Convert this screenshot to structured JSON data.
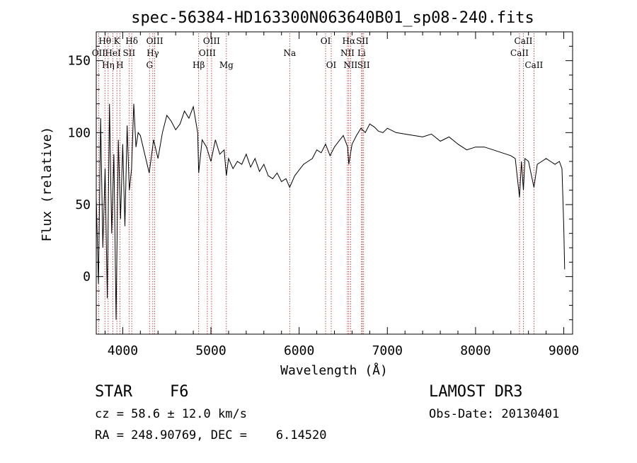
{
  "chart_data": {
    "type": "line",
    "title": "spec-56384-HD163300N063640B01_sp08-240.fits",
    "xlabel": "Wavelength (Å)",
    "ylabel": "Flux (relative)",
    "xlim": [
      3700,
      9100
    ],
    "ylim": [
      -40,
      170
    ],
    "xticks": [
      {
        "value": 4000,
        "label": "4000"
      },
      {
        "value": 5000,
        "label": "5000"
      },
      {
        "value": 6000,
        "label": "6000"
      },
      {
        "value": 7000,
        "label": "7000"
      },
      {
        "value": 8000,
        "label": "8000"
      },
      {
        "value": 9000,
        "label": "9000"
      }
    ],
    "yticks": [
      {
        "value": 0,
        "label": "0"
      },
      {
        "value": 50,
        "label": "50"
      },
      {
        "value": 100,
        "label": "100"
      },
      {
        "value": 150,
        "label": "150"
      }
    ],
    "grid": false,
    "series": [
      {
        "name": "flux",
        "color": "#000000",
        "x": [
          3700,
          3725,
          3750,
          3775,
          3800,
          3825,
          3850,
          3875,
          3900,
          3925,
          3950,
          3975,
          4000,
          4025,
          4050,
          4075,
          4100,
          4125,
          4150,
          4175,
          4200,
          4250,
          4300,
          4350,
          4400,
          4450,
          4500,
          4550,
          4600,
          4650,
          4700,
          4750,
          4800,
          4850,
          4861,
          4900,
          4950,
          5000,
          5050,
          5100,
          5150,
          5175,
          5200,
          5250,
          5300,
          5350,
          5400,
          5450,
          5500,
          5550,
          5600,
          5650,
          5700,
          5750,
          5800,
          5850,
          5893,
          5950,
          6000,
          6050,
          6100,
          6150,
          6200,
          6250,
          6300,
          6350,
          6400,
          6450,
          6500,
          6550,
          6563,
          6600,
          6650,
          6700,
          6750,
          6800,
          6850,
          6900,
          6950,
          7000,
          7100,
          7200,
          7300,
          7400,
          7500,
          7600,
          7700,
          7800,
          7900,
          8000,
          8100,
          8200,
          8300,
          8400,
          8450,
          8498,
          8520,
          8542,
          8560,
          8600,
          8662,
          8700,
          8750,
          8800,
          8850,
          8900,
          8950,
          8980,
          9000,
          9010
        ],
        "y": [
          55,
          -5,
          110,
          20,
          75,
          -15,
          120,
          30,
          85,
          -30,
          95,
          40,
          92,
          35,
          105,
          60,
          75,
          120,
          90,
          100,
          98,
          85,
          72,
          95,
          82,
          100,
          112,
          108,
          102,
          106,
          115,
          110,
          118,
          100,
          72,
          95,
          90,
          80,
          95,
          85,
          88,
          70,
          82,
          75,
          80,
          78,
          85,
          76,
          82,
          73,
          78,
          70,
          68,
          72,
          66,
          68,
          62,
          70,
          74,
          78,
          80,
          82,
          88,
          86,
          92,
          84,
          90,
          94,
          98,
          90,
          78,
          92,
          98,
          103,
          100,
          106,
          104,
          101,
          100,
          103,
          100,
          99,
          98,
          97,
          99,
          94,
          97,
          92,
          88,
          90,
          90,
          88,
          86,
          84,
          82,
          55,
          80,
          60,
          82,
          80,
          62,
          78,
          80,
          82,
          80,
          78,
          80,
          75,
          35,
          5
        ]
      }
    ],
    "lines": [
      {
        "name": "OII",
        "wavelength": 3727,
        "row": 2
      },
      {
        "name": "Hθ",
        "wavelength": 3798,
        "row": 1
      },
      {
        "name": "Hη",
        "wavelength": 3835,
        "row": 3
      },
      {
        "name": "HeI",
        "wavelength": 3889,
        "row": 2
      },
      {
        "name": "K",
        "wavelength": 3934,
        "row": 1
      },
      {
        "name": "H",
        "wavelength": 3968,
        "row": 3
      },
      {
        "name": "SII",
        "wavelength": 4072,
        "row": 2
      },
      {
        "name": "Hδ",
        "wavelength": 4102,
        "row": 1
      },
      {
        "name": "G",
        "wavelength": 4304,
        "row": 3
      },
      {
        "name": "Hγ",
        "wavelength": 4341,
        "row": 2
      },
      {
        "name": "OIII",
        "wavelength": 4363,
        "row": 1
      },
      {
        "name": "Hβ",
        "wavelength": 4861,
        "row": 3
      },
      {
        "name": "OIII",
        "wavelength": 4959,
        "row": 2
      },
      {
        "name": "OIII",
        "wavelength": 5007,
        "row": 1
      },
      {
        "name": "Mg",
        "wavelength": 5175,
        "row": 3
      },
      {
        "name": "Na",
        "wavelength": 5893,
        "row": 2
      },
      {
        "name": "OI",
        "wavelength": 6300,
        "row": 1
      },
      {
        "name": "OI",
        "wavelength": 6364,
        "row": 3
      },
      {
        "name": "NII",
        "wavelength": 6548,
        "row": 2
      },
      {
        "name": "Hα",
        "wavelength": 6563,
        "row": 1
      },
      {
        "name": "NII",
        "wavelength": 6583,
        "row": 3
      },
      {
        "name": "Li",
        "wavelength": 6708,
        "row": 2
      },
      {
        "name": "SII",
        "wavelength": 6716,
        "row": 1
      },
      {
        "name": "SII",
        "wavelength": 6731,
        "row": 3
      },
      {
        "name": "CaII",
        "wavelength": 8498,
        "row": 2
      },
      {
        "name": "CaII",
        "wavelength": 8542,
        "row": 1
      },
      {
        "name": "CaII",
        "wavelength": 8662,
        "row": 3
      }
    ],
    "line_color": "#b22222"
  },
  "info": {
    "class": "STAR",
    "subclass": "F6",
    "survey": "LAMOST DR3",
    "cz": "cz = 58.6 ± 12.0 km/s",
    "obs_date": "Obs-Date: 20130401",
    "radec": "RA = 248.90769, DEC =    6.14520"
  }
}
